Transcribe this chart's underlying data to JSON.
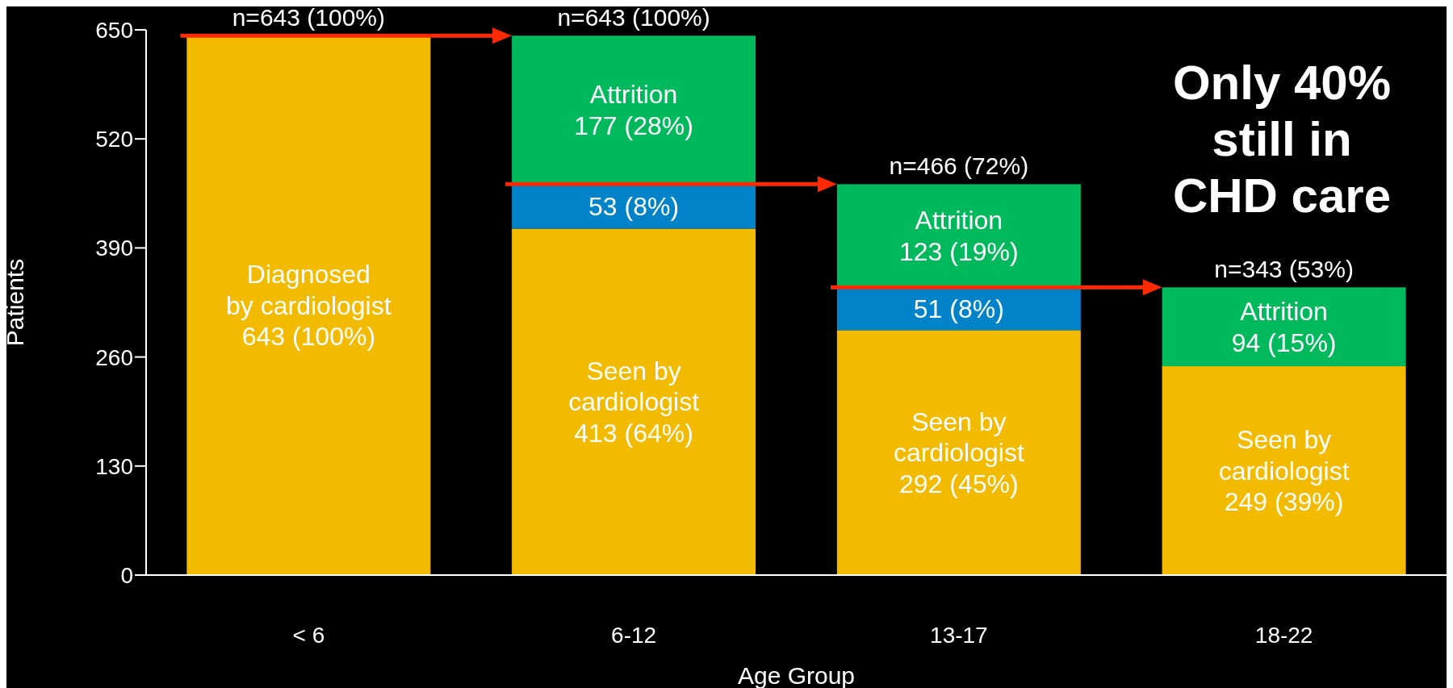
{
  "chart_data": {
    "type": "bar",
    "stacked": true,
    "xlabel": "Age Group",
    "ylabel": "Patients",
    "categories": [
      "< 6",
      "6-12",
      "13-17",
      "18-22"
    ],
    "series": [
      {
        "color": "#f2bb00",
        "values": [
          643,
          413,
          292,
          249
        ],
        "value_labels": [
          "Diagnosed\nby cardiologist\n643 (100%)",
          "Seen by\ncardiologist\n413 (64%)",
          "Seen by\ncardiologist\n292 (45%)",
          "Seen by\ncardiologist\n249 (39%)"
        ]
      },
      {
        "color": "#0083c9",
        "values": [
          null,
          53,
          51,
          null
        ],
        "value_labels": [
          null,
          "53 (8%)",
          "51 (8%)",
          null
        ]
      },
      {
        "color": "#00b95c",
        "values": [
          null,
          177,
          123,
          94
        ],
        "value_labels": [
          null,
          "Attrition\n177 (28%)",
          "Attrition\n123 (19%)",
          "Attrition\n94 (15%)"
        ]
      }
    ],
    "totals": [
      "n=643 (100%)",
      "n=643 (100%)",
      "n=466 (72%)",
      "n=343 (53%)"
    ],
    "ylim": [
      0,
      650
    ],
    "yticks": [
      0,
      130,
      260,
      390,
      520,
      650
    ],
    "grid": false,
    "legend": false,
    "annotations": [
      "Only 40%\nstill in\nCHD care"
    ]
  }
}
